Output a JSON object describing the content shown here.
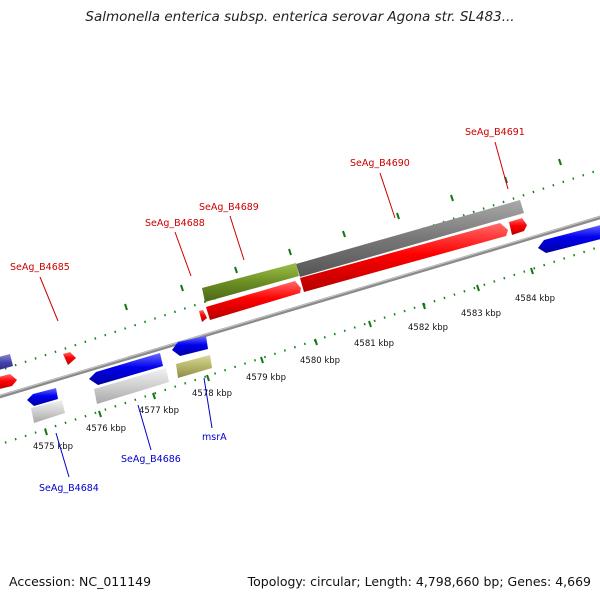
{
  "title": "Salmonella enterica subsp. enterica serovar Agona str. SL483...",
  "footer": {
    "accession": "Accession: NC_011149",
    "topology": "Topology: circular; Length: 4,798,660 bp; Genes: 4,669"
  },
  "colors": {
    "forward_gene": "#ee0000",
    "reverse_gene": "#0000dd",
    "forward_label": "#cc0000",
    "reverse_label": "#0000cc",
    "backbone": "#888888",
    "tick": "#117711",
    "feature_olive": "#6b8e23",
    "feature_gray": "#777777",
    "feature_silver": "#cccccc",
    "feature_khaki": "#b5b56a",
    "feature_navy": "#4444aa"
  },
  "scale": {
    "ticks": [
      {
        "label": "4575 kbp"
      },
      {
        "label": "4576 kbp"
      },
      {
        "label": "4577 kbp"
      },
      {
        "label": "4578 kbp"
      },
      {
        "label": "4579 kbp"
      },
      {
        "label": "4580 kbp"
      },
      {
        "label": "4581 kbp"
      },
      {
        "label": "4582 kbp"
      },
      {
        "label": "4583 kbp"
      },
      {
        "label": "4584 kbp"
      }
    ]
  },
  "genes": {
    "forward": [
      {
        "label": "SeAg_B4685"
      },
      {
        "label": "SeAg_B4688"
      },
      {
        "label": "SeAg_B4689"
      },
      {
        "label": "SeAg_B4690"
      },
      {
        "label": "SeAg_B4691"
      }
    ],
    "reverse": [
      {
        "label": "SeAg_B4684"
      },
      {
        "label": "SeAg_B4686"
      },
      {
        "label": "msrA"
      }
    ]
  }
}
